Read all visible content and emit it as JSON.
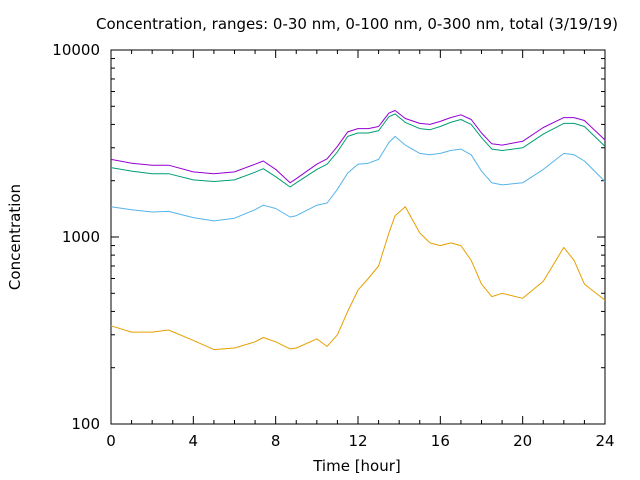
{
  "chart_data": {
    "type": "line",
    "title": "Concentration, ranges: 0-30 nm, 0-100 nm, 0-300 nm, total (3/19/19)",
    "xlabel": "Time [hour]",
    "ylabel": "Concentration",
    "xlim": [
      0,
      24
    ],
    "ylim": [
      100,
      10000
    ],
    "yscale": "log",
    "grid": false,
    "legend": "none",
    "x_ticks": [
      "0",
      "4",
      "8",
      "12",
      "16",
      "20",
      "24"
    ],
    "y_ticks": [
      "100",
      "1000",
      "10000"
    ],
    "x": [
      0,
      1,
      2,
      2.8,
      4,
      5,
      6,
      7,
      7.4,
      8,
      8.7,
      9,
      10,
      10.5,
      11,
      11.5,
      12,
      12.5,
      13,
      13.5,
      13.8,
      14.3,
      15,
      15.5,
      16,
      16.5,
      17,
      17.5,
      18,
      18.5,
      19,
      20,
      21,
      22,
      22.5,
      23,
      24
    ],
    "series": [
      {
        "color": "#9400d3",
        "values": [
          2600,
          2480,
          2420,
          2420,
          2230,
          2180,
          2230,
          2450,
          2550,
          2300,
          1950,
          2050,
          2450,
          2620,
          3050,
          3650,
          3800,
          3800,
          3900,
          4600,
          4750,
          4300,
          4050,
          4000,
          4150,
          4350,
          4500,
          4250,
          3600,
          3150,
          3100,
          3250,
          3850,
          4350,
          4350,
          4200,
          3300
        ]
      },
      {
        "color": "#009e73",
        "values": [
          2350,
          2250,
          2180,
          2180,
          2020,
          1980,
          2020,
          2220,
          2320,
          2100,
          1850,
          1950,
          2300,
          2450,
          2850,
          3450,
          3600,
          3600,
          3700,
          4400,
          4550,
          4100,
          3800,
          3750,
          3900,
          4100,
          4250,
          4000,
          3400,
          2950,
          2900,
          3000,
          3550,
          4050,
          4050,
          3900,
          3050
        ]
      },
      {
        "color": "#56b4e9",
        "values": [
          1450,
          1400,
          1360,
          1370,
          1270,
          1220,
          1260,
          1400,
          1480,
          1420,
          1280,
          1300,
          1480,
          1520,
          1800,
          2200,
          2450,
          2480,
          2600,
          3200,
          3450,
          3100,
          2800,
          2750,
          2800,
          2900,
          2950,
          2750,
          2250,
          1950,
          1900,
          1950,
          2300,
          2800,
          2750,
          2550,
          1980
        ]
      },
      {
        "color": "#e69f00",
        "values": [
          335,
          310,
          310,
          318,
          280,
          250,
          255,
          275,
          290,
          275,
          252,
          255,
          285,
          260,
          300,
          400,
          520,
          600,
          700,
          1050,
          1300,
          1450,
          1050,
          930,
          900,
          930,
          900,
          750,
          560,
          480,
          500,
          470,
          580,
          880,
          750,
          560,
          460
        ]
      }
    ]
  }
}
